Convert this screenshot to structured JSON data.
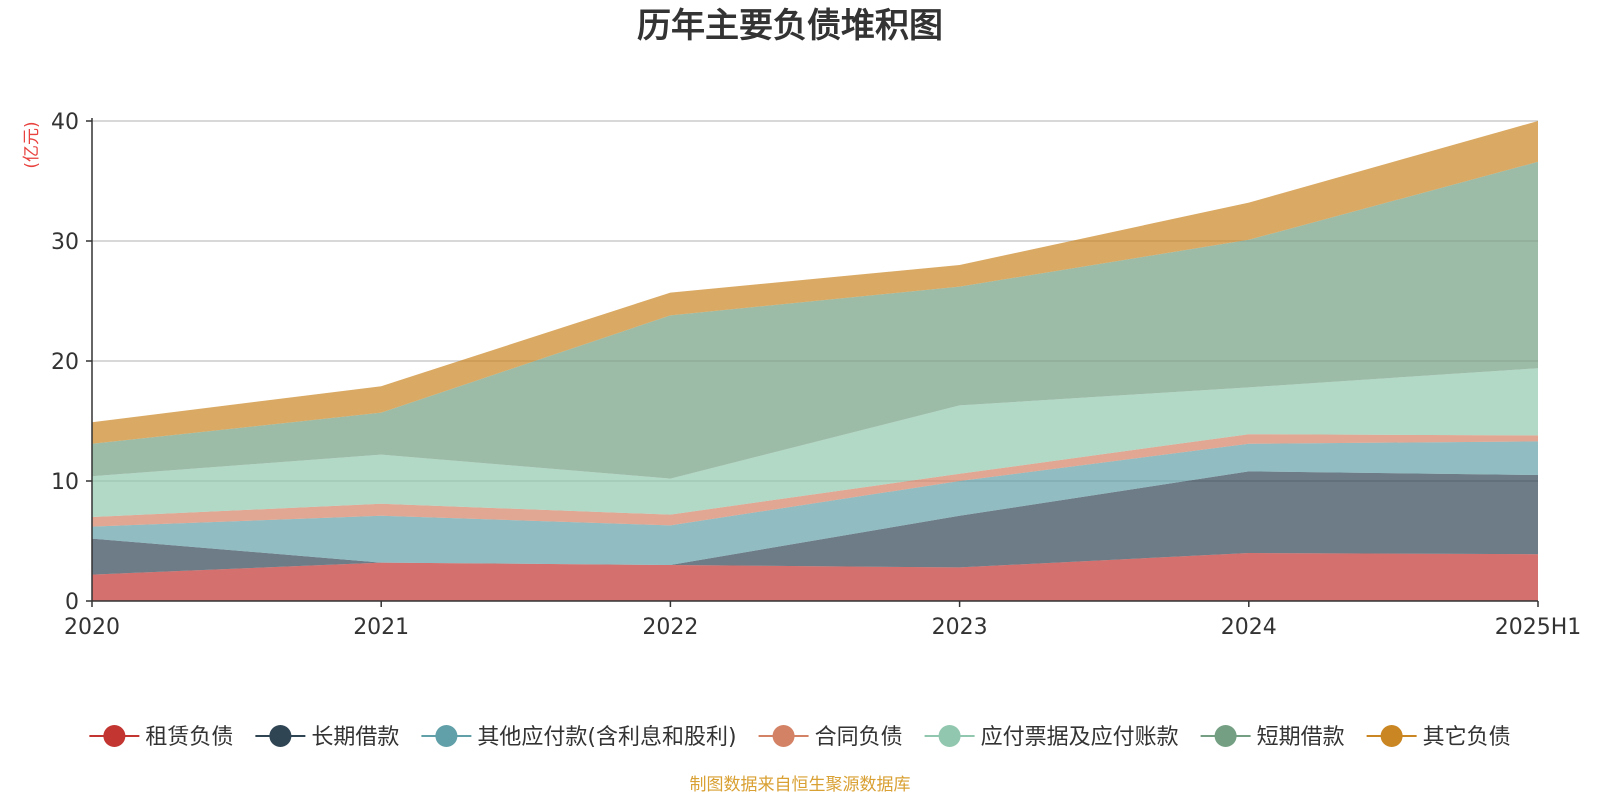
{
  "chart_data": {
    "type": "area",
    "stacked": true,
    "title": "历年主要负债堆积图",
    "ylabel": "(亿元)",
    "xlabel": "",
    "source_note": "制图数据来自恒生聚源数据库",
    "categories": [
      "2020",
      "2021",
      "2022",
      "2023",
      "2024",
      "2025H1"
    ],
    "ylim": [
      0,
      40
    ],
    "yticks": [
      0,
      10,
      20,
      30,
      40
    ],
    "grid": true,
    "legend_position": "bottom",
    "series": [
      {
        "name": "租赁负债",
        "color": "#c23531",
        "values": [
          2.2,
          3.2,
          3.0,
          2.8,
          4.0,
          3.9
        ]
      },
      {
        "name": "长期借款",
        "color": "#2f4554",
        "values": [
          3.0,
          0.0,
          0.0,
          4.3,
          6.8,
          6.6
        ]
      },
      {
        "name": "其他应付款(含利息和股利)",
        "color": "#61a0a8",
        "values": [
          1.0,
          3.9,
          3.3,
          2.9,
          2.3,
          2.8
        ]
      },
      {
        "name": "合同负债",
        "color": "#d48265",
        "values": [
          0.8,
          1.0,
          0.9,
          0.6,
          0.8,
          0.5
        ]
      },
      {
        "name": "应付票据及应付账款",
        "color": "#91c7ae",
        "values": [
          3.4,
          4.1,
          3.0,
          5.7,
          3.9,
          5.6
        ]
      },
      {
        "name": "短期借款",
        "color": "#749f83",
        "values": [
          2.7,
          3.5,
          13.6,
          9.9,
          12.3,
          17.2
        ]
      },
      {
        "name": "其它负债",
        "color": "#ca8622",
        "values": [
          1.8,
          2.2,
          1.9,
          1.8,
          3.1,
          3.4
        ]
      }
    ]
  }
}
